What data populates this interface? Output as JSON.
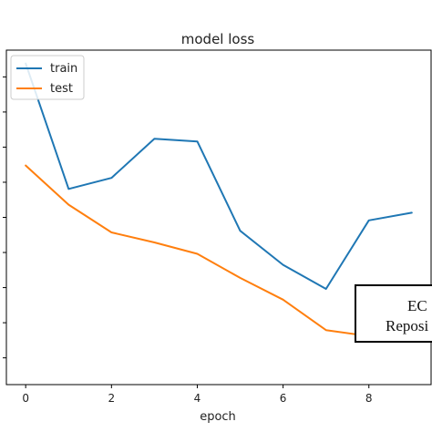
{
  "chart_data": {
    "type": "line",
    "title": "model loss",
    "xlabel": "epoch",
    "ylabel": "",
    "x": [
      0,
      1,
      2,
      3,
      4,
      5,
      6,
      7,
      8,
      9
    ],
    "xticks": [
      "0",
      "2",
      "4",
      "6",
      "8"
    ],
    "xlim": [
      -0.45,
      9.45
    ],
    "ylim": [
      0,
      1
    ],
    "yticks": [
      0.08,
      0.185,
      0.29,
      0.395,
      0.5,
      0.605,
      0.71,
      0.815,
      0.92
    ],
    "grid": false,
    "legend": "top-left",
    "series": [
      {
        "name": "train",
        "color": "#1f77b4",
        "values": [
          0.96,
          0.585,
          0.618,
          0.735,
          0.727,
          0.46,
          0.358,
          0.286,
          0.491,
          0.514
        ]
      },
      {
        "name": "test",
        "color": "#ff7f0e",
        "values": [
          0.655,
          0.538,
          0.455,
          0.425,
          0.391,
          0.319,
          0.254,
          0.163,
          0.145,
          0.147
        ]
      }
    ]
  },
  "overlay": {
    "line1": "EC",
    "line2": "Reposi"
  }
}
